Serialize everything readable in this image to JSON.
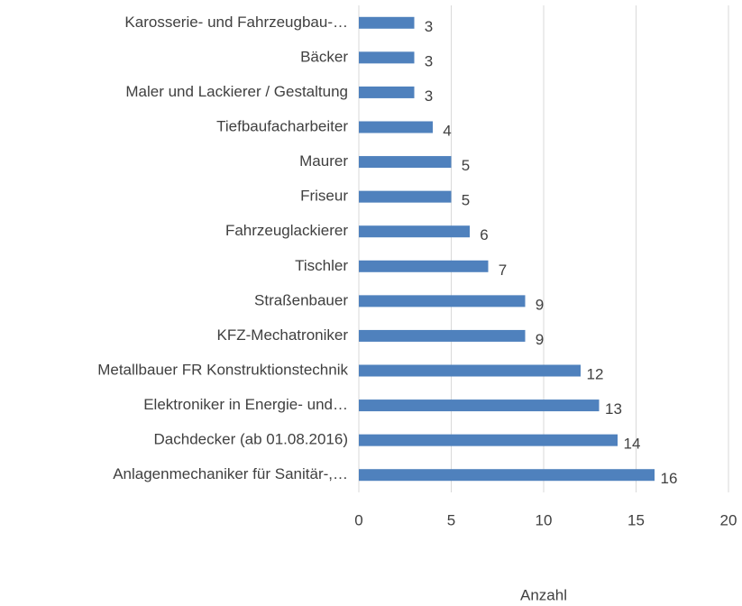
{
  "chart_data": {
    "type": "bar",
    "orientation": "horizontal",
    "categories": [
      "Karosserie- und Fahrzeugbau-…",
      "Bäcker",
      "Maler und Lackierer / Gestaltung",
      "Tiefbaufacharbeiter",
      "Maurer",
      "Friseur",
      "Fahrzeuglackierer",
      "Tischler",
      "Straßenbauer",
      "KFZ-Mechatroniker",
      "Metallbauer FR Konstruktionstechnik",
      "Elektroniker in Energie- und…",
      "Dachdecker (ab 01.08.2016)",
      "Anlagenmechaniker für Sanitär-,…"
    ],
    "values": [
      3,
      3,
      3,
      4,
      5,
      5,
      6,
      7,
      9,
      9,
      12,
      13,
      14,
      16
    ],
    "color": "#4f81bd",
    "xlim": [
      0,
      20
    ],
    "xticks": [
      0,
      5,
      10,
      15,
      20
    ],
    "grid": true,
    "xlabel": "Anzahl"
  }
}
